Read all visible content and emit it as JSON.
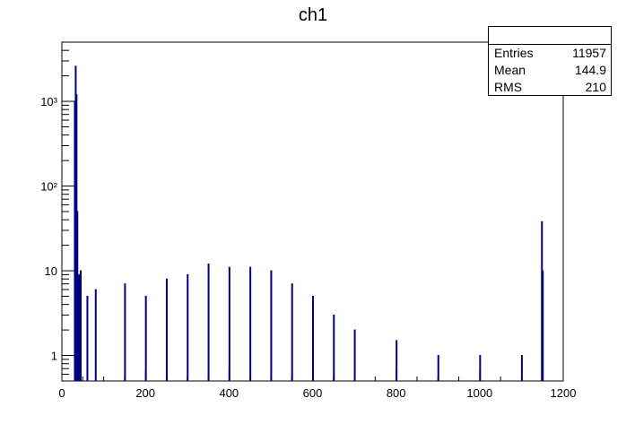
{
  "title": "ch1",
  "stats": {
    "entries_label": "Entries",
    "entries_value": "11957",
    "mean_label": "Mean",
    "mean_value": "144.9",
    "rms_label": "RMS",
    "rms_value": "210"
  },
  "colors": {
    "line": "#000080",
    "axis": "#000000"
  },
  "chart_data": {
    "type": "histogram",
    "title": "ch1",
    "xlabel": "",
    "ylabel": "",
    "xlim": [
      0,
      1200
    ],
    "y_scale": "log",
    "ylim": [
      0.5,
      5000
    ],
    "grid": false,
    "legend": "stats box top-right",
    "x_ticks": [
      "0",
      "200",
      "400",
      "600",
      "800",
      "1000",
      "1200"
    ],
    "y_ticks": [
      {
        "value": 1,
        "label": "1"
      },
      {
        "value": 10,
        "label": "10"
      },
      {
        "value": 100,
        "label": "10²"
      },
      {
        "value": 1000,
        "label": "10³"
      }
    ],
    "series": [
      {
        "bin_width": 2,
        "bins": [
          {
            "x": 30,
            "y": 1000
          },
          {
            "x": 32,
            "y": 2600
          },
          {
            "x": 34,
            "y": 1200
          },
          {
            "x": 36,
            "y": 50
          },
          {
            "x": 38,
            "y": 8
          },
          {
            "x": 40,
            "y": 9
          },
          {
            "x": 44,
            "y": 10
          },
          {
            "x": 60,
            "y": 5
          },
          {
            "x": 80,
            "y": 6
          },
          {
            "x": 150,
            "y": 7
          },
          {
            "x": 200,
            "y": 5
          },
          {
            "x": 250,
            "y": 8
          },
          {
            "x": 300,
            "y": 9
          },
          {
            "x": 350,
            "y": 12
          },
          {
            "x": 400,
            "y": 11
          },
          {
            "x": 450,
            "y": 11
          },
          {
            "x": 500,
            "y": 10
          },
          {
            "x": 550,
            "y": 7
          },
          {
            "x": 600,
            "y": 5
          },
          {
            "x": 650,
            "y": 3
          },
          {
            "x": 700,
            "y": 2
          },
          {
            "x": 800,
            "y": 1.5
          },
          {
            "x": 900,
            "y": 1
          },
          {
            "x": 1000,
            "y": 1
          },
          {
            "x": 1100,
            "y": 1
          },
          {
            "x": 1148,
            "y": 38
          },
          {
            "x": 1150,
            "y": 10
          }
        ]
      }
    ]
  }
}
